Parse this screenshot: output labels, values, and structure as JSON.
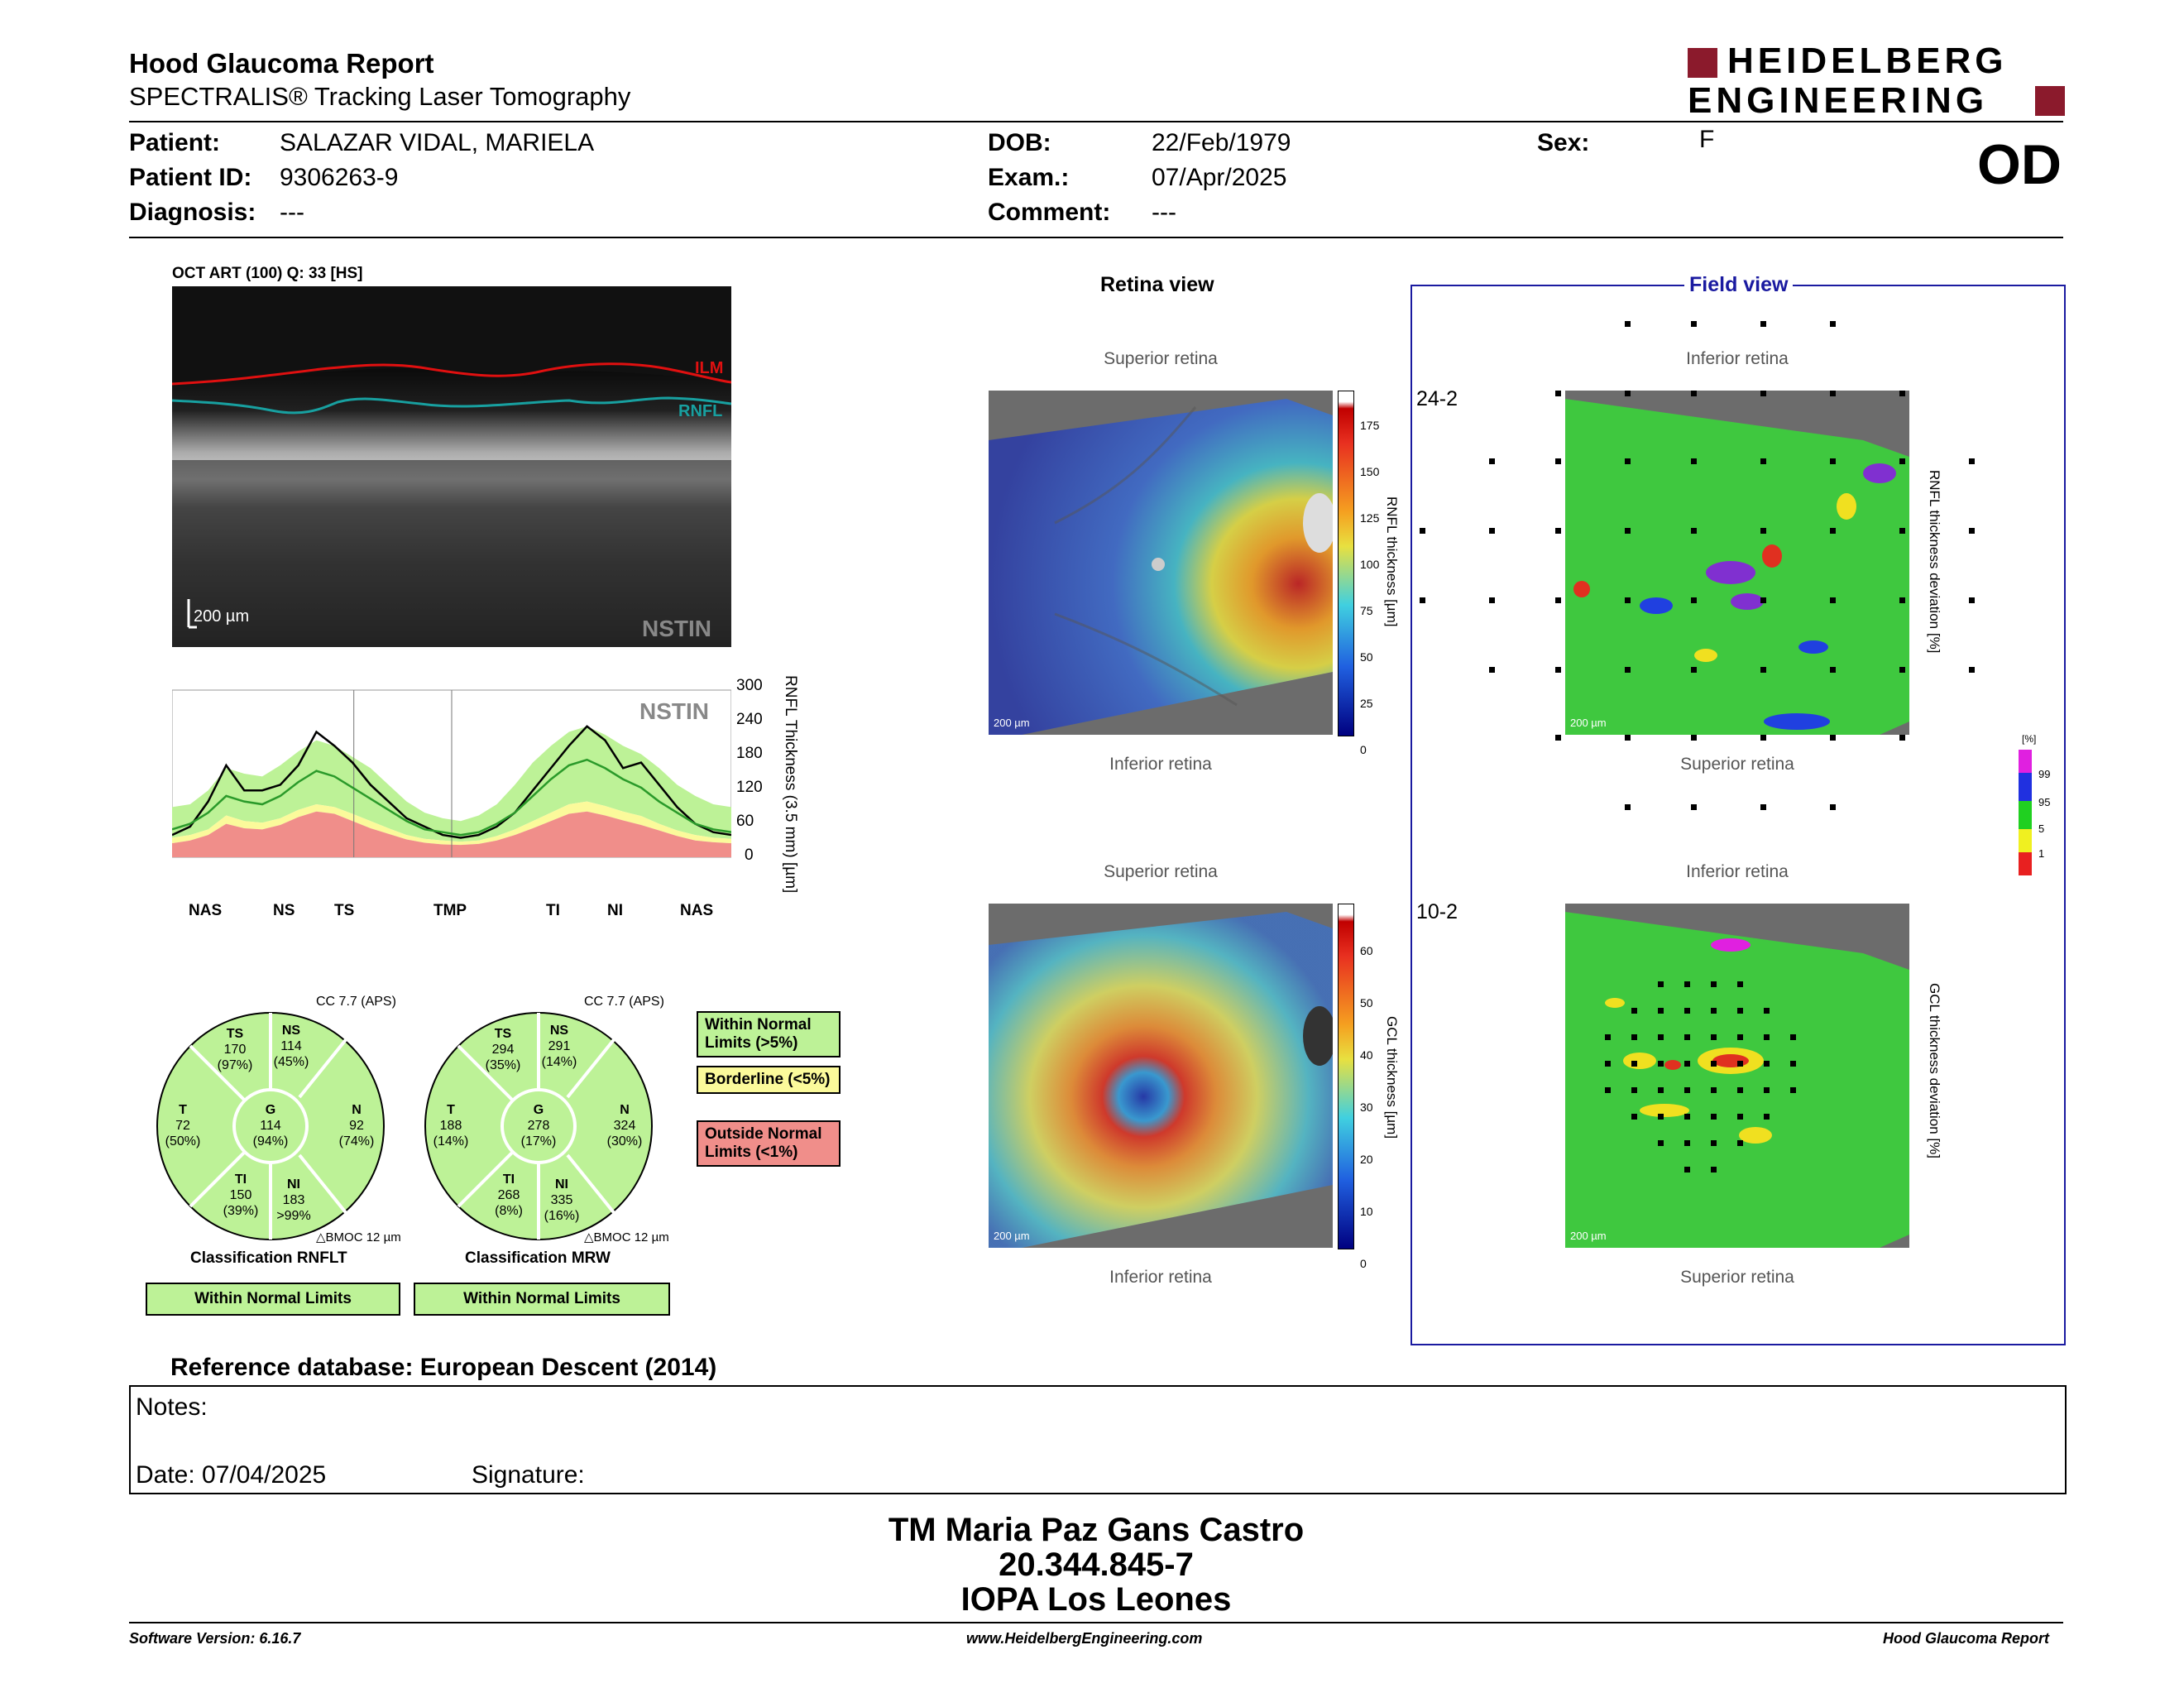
{
  "header": {
    "title": "Hood Glaucoma Report",
    "subtitle": "SPECTRALIS® Tracking Laser Tomography",
    "logo_line1": "HEIDELBERG",
    "logo_line2": "ENGINEERING",
    "eye": "OD"
  },
  "patient": {
    "patient_label": "Patient:",
    "patient_name": "SALAZAR VIDAL, MARIELA",
    "id_label": "Patient ID:",
    "id": "9306263-9",
    "diag_label": "Diagnosis:",
    "diagnosis": "---",
    "dob_label": "DOB:",
    "dob": "22/Feb/1979",
    "exam_label": "Exam.:",
    "exam": "07/Apr/2025",
    "comment_label": "Comment:",
    "comment": "---",
    "sex_label": "Sex:",
    "sex": "F"
  },
  "oct": {
    "caption": "OCT ART (100) Q: 33 [HS]",
    "scale": "200 µm",
    "ilm": "ILM",
    "rnfl": "RNFL",
    "nstin": "NSTIN"
  },
  "chart_data": {
    "type": "line",
    "ylabel": "RNFL Thickness (3.5 mm) [µm]",
    "ylim": [
      0,
      300
    ],
    "yticks": [
      0,
      60,
      120,
      180,
      240,
      300
    ],
    "sector_labels": [
      "NAS",
      "NS",
      "TS",
      "TMP",
      "TI",
      "NI",
      "NAS"
    ],
    "watermark": "NSTIN",
    "series": [
      {
        "values": [
          40,
          55,
          100,
          165,
          120,
          120,
          130,
          165,
          225,
          200,
          170,
          130,
          100,
          70,
          55,
          40,
          35,
          40,
          55,
          80,
          120,
          160,
          200,
          235,
          210,
          160,
          170,
          130,
          90,
          60,
          45,
          40
        ]
      },
      {
        "values": [
          50,
          60,
          80,
          110,
          100,
          95,
          110,
          135,
          155,
          145,
          125,
          105,
          85,
          65,
          50,
          45,
          40,
          45,
          60,
          80,
          110,
          140,
          165,
          175,
          160,
          140,
          125,
          100,
          80,
          60,
          50,
          45
        ]
      }
    ],
    "normal_band": [
      [
        40,
        90
      ],
      [
        45,
        95
      ],
      [
        60,
        120
      ],
      [
        90,
        160
      ],
      [
        80,
        150
      ],
      [
        75,
        145
      ],
      [
        85,
        165
      ],
      [
        100,
        190
      ],
      [
        115,
        210
      ],
      [
        110,
        200
      ],
      [
        95,
        180
      ],
      [
        80,
        160
      ],
      [
        65,
        130
      ],
      [
        50,
        100
      ],
      [
        40,
        80
      ],
      [
        35,
        70
      ],
      [
        32,
        65
      ],
      [
        35,
        75
      ],
      [
        45,
        95
      ],
      [
        60,
        130
      ],
      [
        80,
        170
      ],
      [
        100,
        200
      ],
      [
        115,
        225
      ],
      [
        120,
        235
      ],
      [
        110,
        220
      ],
      [
        100,
        200
      ],
      [
        90,
        185
      ],
      [
        75,
        160
      ],
      [
        60,
        130
      ],
      [
        50,
        110
      ],
      [
        42,
        95
      ],
      [
        40,
        90
      ]
    ],
    "borderline_top": [
      35,
      40,
      50,
      75,
      65,
      62,
      70,
      85,
      95,
      90,
      78,
      65,
      52,
      40,
      33,
      30,
      28,
      30,
      38,
      50,
      65,
      80,
      95,
      100,
      92,
      82,
      74,
      60,
      48,
      40,
      35,
      33
    ],
    "outside_top": [
      25,
      30,
      40,
      60,
      52,
      50,
      58,
      72,
      82,
      78,
      65,
      52,
      42,
      32,
      26,
      23,
      22,
      24,
      30,
      40,
      52,
      65,
      78,
      82,
      75,
      66,
      58,
      48,
      38,
      30,
      27,
      25
    ]
  },
  "sectors_rnflt": {
    "cc": "CC 7.7 (APS)",
    "TS": {
      "name": "TS",
      "value": "170",
      "pct": "(97%)"
    },
    "NS": {
      "name": "NS",
      "value": "114",
      "pct": "(45%)"
    },
    "T": {
      "name": "T",
      "value": "72",
      "pct": "(50%)"
    },
    "G": {
      "name": "G",
      "value": "114",
      "pct": "(94%)"
    },
    "N": {
      "name": "N",
      "value": "92",
      "pct": "(74%)"
    },
    "TI": {
      "name": "TI",
      "value": "150",
      "pct": "(39%)"
    },
    "NI": {
      "name": "NI",
      "value": "183",
      "pct": ">99%"
    },
    "bmoc": "BMOC 12 µm",
    "classification_label": "Classification RNFLT",
    "classification": "Within Normal Limits"
  },
  "sectors_mrw": {
    "cc": "CC 7.7 (APS)",
    "TS": {
      "name": "TS",
      "value": "294",
      "pct": "(35%)"
    },
    "NS": {
      "name": "NS",
      "value": "291",
      "pct": "(14%)"
    },
    "T": {
      "name": "T",
      "value": "188",
      "pct": "(14%)"
    },
    "G": {
      "name": "G",
      "value": "278",
      "pct": "(17%)"
    },
    "N": {
      "name": "N",
      "value": "324",
      "pct": "(30%)"
    },
    "TI": {
      "name": "TI",
      "value": "268",
      "pct": "(8%)"
    },
    "NI": {
      "name": "NI",
      "value": "335",
      "pct": "(16%)"
    },
    "bmoc": "BMOC 12 µm",
    "classification_label": "Classification MRW",
    "classification": "Within Normal Limits"
  },
  "legend": {
    "within": "Within Normal Limits (>5%)",
    "borderline": "Borderline (<5%)",
    "outside": "Outside Normal Limits (<1%)",
    "within_color": "#bdf297",
    "borderline_color": "#fbfa9b",
    "outside_color": "#f08e8a"
  },
  "retina": {
    "title": "Retina view",
    "sup": "Superior retina",
    "inf": "Inferior retina",
    "scale": "200 µm",
    "rnfl_axis": "RNFL thickness [µm]",
    "rnfl_ticks": [
      "175",
      "150",
      "125",
      "100",
      "75",
      "50",
      "25",
      "0"
    ],
    "gcl_axis": "GCL thickness [µm]",
    "gcl_ticks": [
      "60",
      "50",
      "40",
      "30",
      "20",
      "10",
      "0"
    ]
  },
  "field": {
    "title": "Field view",
    "inf": "Inferior retina",
    "sup": "Superior retina",
    "label_242": "24-2",
    "label_102": "10-2",
    "rnfl_dev_axis": "RNFL thickness deviation [%]",
    "gcl_dev_axis": "GCL thickness deviation [%]",
    "dev_unit": "[%]",
    "dev_ticks": [
      "99",
      "95",
      "5",
      "1"
    ]
  },
  "reference": "Reference database: European Descent (2014)",
  "notes": {
    "notes_label": "Notes:",
    "date_label": "Date: 07/04/2025",
    "signature_label": "Signature:"
  },
  "signature_block": {
    "line1": "TM Maria Paz Gans Castro",
    "line2": "20.344.845-7",
    "line3": "IOPA Los Leones"
  },
  "footer": {
    "software": "Software Version: 6.16.7",
    "website": "www.HeidelbergEngineering.com",
    "report": "Hood Glaucoma Report"
  }
}
